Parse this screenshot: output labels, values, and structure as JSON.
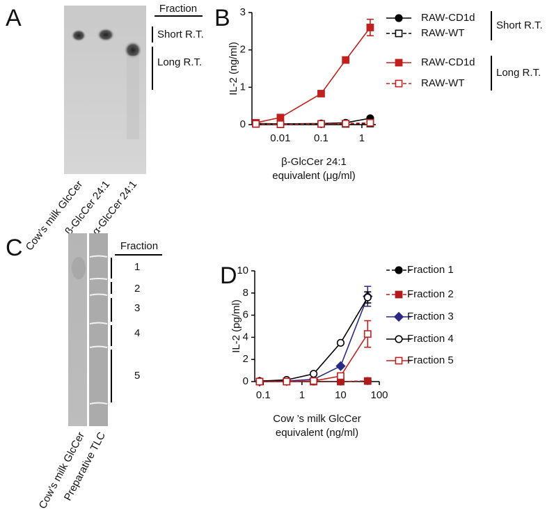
{
  "panel_a": {
    "letter": "A",
    "header": "Fraction",
    "brackets": [
      "Short R.T.",
      "Long R.T."
    ],
    "lanes": [
      "Cow’s milk GlcCer",
      "β-GlcCer 24:1",
      "α-GlcCer 24:1"
    ]
  },
  "panel_c": {
    "letter": "C",
    "header": "Fraction",
    "fractions": [
      "1",
      "2",
      "3",
      "4",
      "5"
    ],
    "lanes": [
      "Cow’s milk GlcCer",
      "Preparative TLC"
    ]
  },
  "chart_data": [
    {
      "type": "line",
      "panel": "B",
      "ylabel": "IL-2 (ng/ml)",
      "xlabel": [
        "β-GlcCer 24:1",
        "equivalent (μg/ml)"
      ],
      "xscale": "log",
      "x": [
        0.0025,
        0.01,
        0.1,
        0.4,
        1.6
      ],
      "xlim": [
        0.002,
        2.2
      ],
      "xticks": [
        0.01,
        0.1,
        1
      ],
      "ylim": [
        0,
        3
      ],
      "yticks": [
        0,
        1,
        2,
        3
      ],
      "grid": false,
      "legend_groups": [
        "Short R.T.",
        "Long R.T."
      ],
      "series": [
        {
          "name": "RAW-CD1d",
          "color": "#000000",
          "marker": "circle",
          "filled": true,
          "dashed": false,
          "values": [
            0.03,
            0.02,
            0.03,
            0.05,
            0.17
          ]
        },
        {
          "name": "RAW-WT",
          "color": "#000000",
          "marker": "square",
          "filled": false,
          "dashed": true,
          "values": [
            0.02,
            0.01,
            0.02,
            0.02,
            0.03
          ]
        },
        {
          "name": "RAW-CD1d",
          "color": "#c0201e",
          "marker": "square",
          "filled": true,
          "dashed": false,
          "values": [
            0.05,
            0.19,
            0.83,
            1.73,
            2.6
          ],
          "errors": [
            null,
            null,
            null,
            null,
            0.22
          ]
        },
        {
          "name": "RAW-WT",
          "color": "#c0201e",
          "marker": "square",
          "filled": false,
          "dashed": true,
          "values": [
            0.02,
            0.01,
            0.02,
            0.03,
            0.05
          ]
        }
      ]
    },
    {
      "type": "line",
      "panel": "D",
      "ylabel": "IL-2 (pg/ml)",
      "xlabel": [
        "Cow ’s milk GlcCer",
        "equivalent (ng/ml)"
      ],
      "xscale": "log",
      "x": [
        0.08,
        0.4,
        2,
        10,
        50
      ],
      "xlim": [
        0.06,
        100
      ],
      "xticks": [
        0.1,
        1,
        10,
        100
      ],
      "ylim": [
        0,
        10
      ],
      "yticks": [
        0,
        2,
        4,
        6,
        8,
        10
      ],
      "grid": false,
      "series": [
        {
          "name": "Fraction 1",
          "color": "#000000",
          "marker": "circle",
          "filled": true,
          "dashed": true,
          "values": [
            0,
            0,
            0,
            0,
            0.05
          ]
        },
        {
          "name": "Fraction 2",
          "color": "#b01c1c",
          "marker": "square",
          "filled": true,
          "dashed": true,
          "values": [
            0,
            0,
            0,
            0,
            0.05
          ]
        },
        {
          "name": "Fraction 3",
          "color": "#2a2a86",
          "marker": "diamond",
          "filled": true,
          "dashed": false,
          "values": [
            0,
            0.05,
            0.2,
            1.4,
            7.7
          ],
          "errors": [
            null,
            null,
            null,
            null,
            0.9
          ]
        },
        {
          "name": "Fraction 4",
          "color": "#000000",
          "marker": "circle",
          "filled": false,
          "dashed": false,
          "values": [
            0.05,
            0.15,
            0.7,
            3.5,
            7.6
          ],
          "errors": [
            null,
            null,
            null,
            null,
            0.5
          ]
        },
        {
          "name": "Fraction 5",
          "color": "#c0201e",
          "marker": "square",
          "filled": false,
          "dashed": false,
          "values": [
            0,
            0,
            0.05,
            0.5,
            4.3
          ],
          "errors": [
            null,
            null,
            null,
            null,
            1.2
          ]
        }
      ]
    }
  ]
}
